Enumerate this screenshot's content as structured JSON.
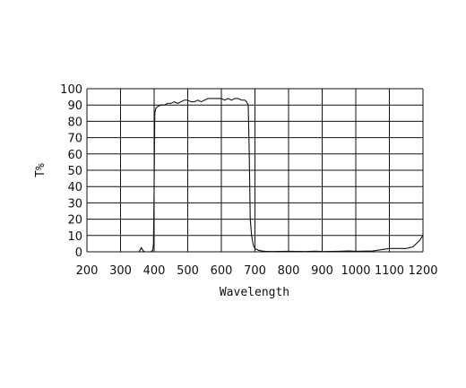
{
  "chart_data": {
    "type": "line",
    "title": "",
    "xlabel": "Wavelength",
    "ylabel": "T%",
    "xlim": [
      200,
      1200
    ],
    "ylim": [
      0,
      100
    ],
    "xticks": [
      200,
      300,
      400,
      500,
      600,
      700,
      800,
      900,
      1000,
      1100,
      1200
    ],
    "yticks": [
      0,
      10,
      20,
      30,
      40,
      50,
      60,
      70,
      80,
      90,
      100
    ],
    "grid": true,
    "legend": "none",
    "series": [
      {
        "x": [
          355,
          362,
          368,
          372,
          380,
          390,
          396,
          398,
          400,
          402,
          405,
          410,
          420,
          430,
          440,
          450,
          460,
          470,
          480,
          490,
          500,
          510,
          520,
          530,
          540,
          550,
          560,
          570,
          580,
          590,
          600,
          610,
          620,
          630,
          640,
          650,
          660,
          670,
          675,
          680,
          683,
          686,
          690,
          695,
          700,
          710,
          720,
          730,
          750,
          800,
          850,
          880,
          900,
          950,
          980,
          1000,
          1050,
          1100,
          1150,
          1170,
          1180,
          1190,
          1200
        ],
        "y": [
          0,
          2.5,
          0.5,
          0,
          0,
          0,
          1,
          5,
          40,
          85,
          88,
          89,
          90,
          90,
          91,
          91,
          92,
          91,
          92,
          93,
          93,
          92,
          92,
          93,
          92,
          93,
          94,
          94,
          94,
          94,
          94,
          93,
          94,
          93,
          94,
          94,
          93,
          93,
          92,
          90,
          60,
          20,
          10,
          4,
          2,
          1,
          0.5,
          0.3,
          0.2,
          0.3,
          0.2,
          0.4,
          0.2,
          0.3,
          0.5,
          0.3,
          0.5,
          2,
          2,
          3,
          5,
          7,
          10
        ]
      }
    ]
  }
}
